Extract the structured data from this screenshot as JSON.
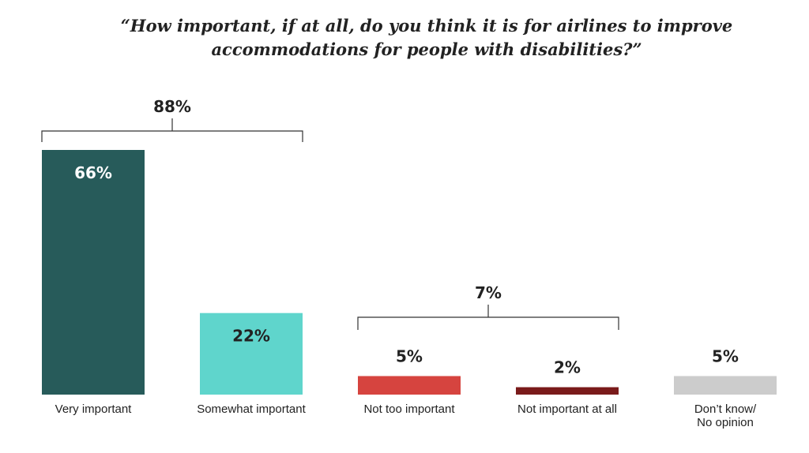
{
  "chart_data": {
    "type": "bar",
    "title": "“How important, if at all, do you think it is for airlines to improve accommodations for people with disabilities?”",
    "categories": [
      "Very important",
      "Somewhat important",
      "Not too important",
      "Not important at all",
      "Don’t know/ No opinion"
    ],
    "values": [
      66,
      22,
      5,
      2,
      5
    ],
    "value_labels": [
      "66%",
      "22%",
      "5%",
      "2%",
      "5%"
    ],
    "colors": [
      "#275b5a",
      "#5fd5cc",
      "#d6443f",
      "#7a1b1b",
      "#cccccc"
    ],
    "groups": [
      {
        "label": "88%",
        "value": 88,
        "from": 0,
        "to": 1
      },
      {
        "label": "7%",
        "value": 7,
        "from": 2,
        "to": 3
      }
    ],
    "xlabel": "",
    "ylabel": "",
    "ylim": [
      0,
      66
    ],
    "grid": false
  }
}
